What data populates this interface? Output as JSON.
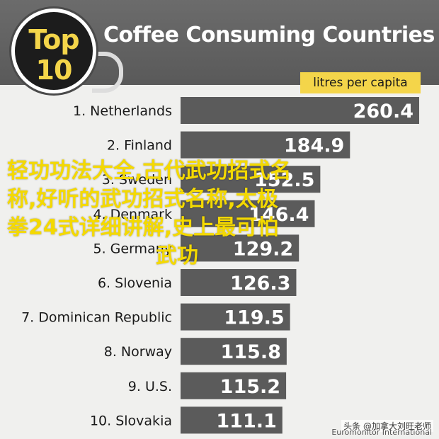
{
  "header": {
    "badge_line1": "Top",
    "badge_line2": "10",
    "title": "Coffee Consuming Countries",
    "unit": "litres per capita"
  },
  "overlay_text": {
    "line1": "轻功功法大全,古代武功招式名",
    "line2": "称,好听的武功招式名称,太极",
    "line3": "拳24式详细讲解,史上最可怕",
    "line4": "武功"
  },
  "watermark": "头条 @加拿大刘旺老师",
  "source": "Euromonitor International",
  "colors": {
    "header": "#5f5f5f",
    "bar": "#5b5b5b",
    "accent": "#f4d54a",
    "background": "#f0f0ee"
  },
  "chart_data": {
    "type": "bar",
    "orientation": "horizontal",
    "title": "Coffee Consuming Countries",
    "unit": "litres per capita",
    "categories": [
      "1. Netherlands",
      "2. Finland",
      "3. Sweden",
      "4. Denmark",
      "5. Germany",
      "6. Slovenia",
      "7. Dominican Republic",
      "8. Norway",
      "9. U.S.",
      "10. Slovakia"
    ],
    "values": [
      260.4,
      184.9,
      152.5,
      146.4,
      129.2,
      126.3,
      119.5,
      115.8,
      115.2,
      111.1
    ],
    "value_labels": [
      "260.4",
      "184.9",
      "152.5",
      "146.4",
      "129.2",
      "126.3",
      "119.5",
      "115.8",
      "115.2",
      "111.1"
    ],
    "xlim": [
      0,
      260.4
    ],
    "grid": false,
    "legend": "none"
  }
}
